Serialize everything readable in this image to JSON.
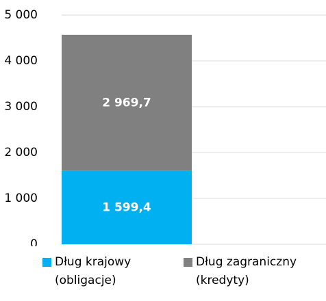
{
  "chart_data": {
    "type": "stacked_bar",
    "categories": [
      null
    ],
    "series": [
      {
        "name": "Dług krajowy (obligacje)",
        "color": "#00b0f0",
        "values": [
          1599.4
        ],
        "value_labels": [
          "1 599,4"
        ]
      },
      {
        "name": "Dług zagraniczny (kredyty)",
        "color": "#808080",
        "values": [
          2969.7
        ],
        "value_labels": [
          "2 969,7"
        ]
      }
    ],
    "ylim": [
      0,
      5000
    ],
    "yticks": [
      0,
      {
        "value": 1000,
        "label": "1 000"
      },
      {
        "value": 2000,
        "label": "2 000"
      },
      {
        "value": 3000,
        "label": "3 000"
      },
      {
        "value": 4000,
        "label": "4 000"
      },
      {
        "value": 5000,
        "label": "5 000"
      }
    ],
    "grid": true,
    "legend": "bottom"
  }
}
